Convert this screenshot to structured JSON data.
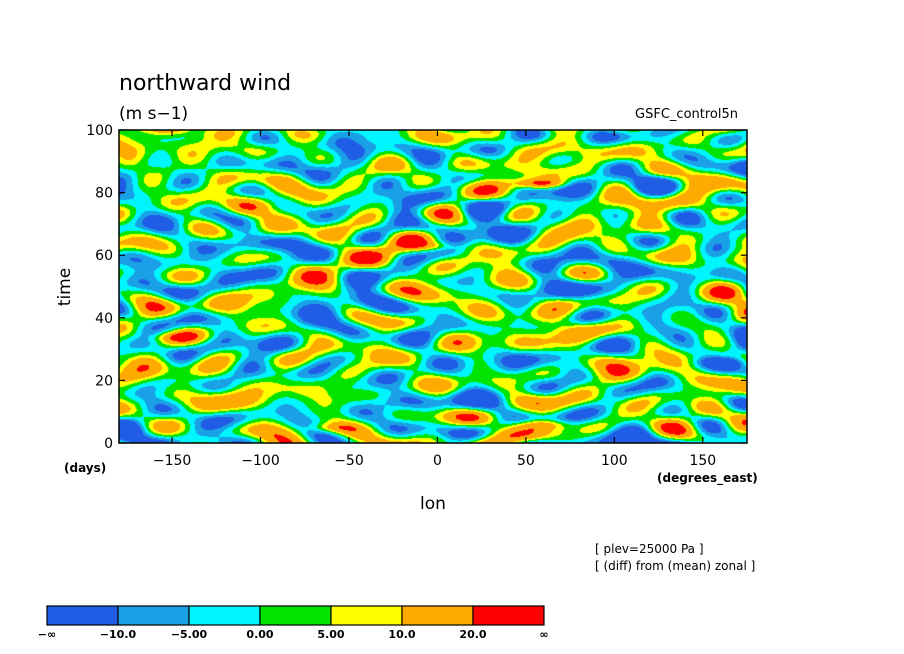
{
  "chart_data": {
    "type": "heatmap",
    "title": "northward wind",
    "units": "(m s−1)",
    "run_label": "GSFC_control5n",
    "xlabel": "lon",
    "ylabel": "time",
    "x_unit": "(degrees_east)",
    "y_unit": "(days)",
    "xlim": [
      -180,
      175
    ],
    "ylim": [
      0,
      100
    ],
    "x_ticks": [
      -150,
      -100,
      -50,
      0,
      50,
      100,
      150
    ],
    "x_tick_labels": [
      "−150",
      "−100",
      "−50",
      "0",
      "50",
      "100",
      "150"
    ],
    "y_ticks": [
      0,
      20,
      40,
      60,
      80,
      100
    ],
    "y_tick_labels": [
      "0",
      "20",
      "40",
      "60",
      "80",
      "100"
    ],
    "notes": [
      "[ plev=25000 Pa ]",
      "[ (diff) from (mean) zonal ]"
    ],
    "colorbar": {
      "boundary_labels": [
        "−∞",
        "−10.0",
        "−5.00",
        "0.00",
        "5.00",
        "10.0",
        "20.0",
        "∞"
      ],
      "bounds": [
        -1000000000.0,
        -10,
        -5,
        0,
        5,
        10,
        20,
        1000000000.0
      ],
      "colors": [
        "#1f5de6",
        "#1aa0e6",
        "#00f5ff",
        "#00e400",
        "#ffff00",
        "#ffaa00",
        "#ff0000"
      ]
    },
    "features": [
      {
        "lon": 58,
        "time": 83,
        "value": 24
      },
      {
        "lon": 60,
        "time": 6,
        "value": 13
      },
      {
        "lon": 0,
        "time": 63,
        "value": 12
      },
      {
        "lon": -60,
        "time": 5,
        "value": 11
      },
      {
        "lon": -150,
        "time": 100,
        "value": 11
      },
      {
        "lon": -150,
        "time": 34,
        "value": 8
      },
      {
        "lon": 160,
        "time": 28,
        "value": 9
      }
    ]
  }
}
